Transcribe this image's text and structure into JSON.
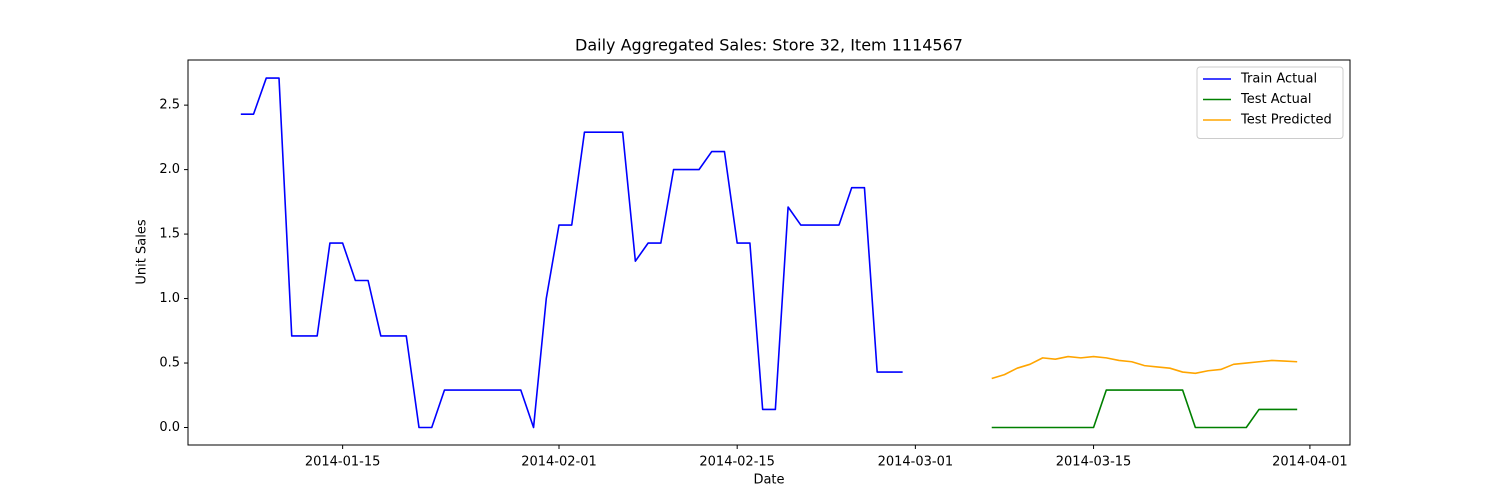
{
  "chart_data": {
    "type": "line",
    "title": "Daily Aggregated Sales: Store 32, Item 1114567",
    "x_label": "Date",
    "y_label": "Unit Sales",
    "xlim": [
      "2014-01-02T20:24:00Z",
      "2014-04-04T03:36:00Z"
    ],
    "xticks": [
      "2014-01-15",
      "2014-02-01",
      "2014-02-15",
      "2014-03-01",
      "2014-03-15",
      "2014-04-01"
    ],
    "ylim": [
      -0.1357,
      2.85
    ],
    "yticks": [
      {
        "value": 0,
        "label": "0.0"
      },
      {
        "value": 0.5,
        "label": "0.5"
      },
      {
        "value": 1,
        "label": "1.0"
      },
      {
        "value": 1.5,
        "label": "1.5"
      },
      {
        "value": 2,
        "label": "2.0"
      },
      {
        "value": 2.5,
        "label": "2.5"
      }
    ],
    "legend": "upper right",
    "grid": false,
    "series": [
      {
        "name": "Train Actual",
        "color": "#0000ff",
        "x": [
          "2014-01-07",
          "2014-01-08",
          "2014-01-09",
          "2014-01-10",
          "2014-01-11",
          "2014-01-12",
          "2014-01-13",
          "2014-01-14",
          "2014-01-15",
          "2014-01-16",
          "2014-01-17",
          "2014-01-18",
          "2014-01-19",
          "2014-01-20",
          "2014-01-21",
          "2014-01-22",
          "2014-01-23",
          "2014-01-24",
          "2014-01-25",
          "2014-01-26",
          "2014-01-27",
          "2014-01-28",
          "2014-01-29",
          "2014-01-30",
          "2014-01-31",
          "2014-02-01",
          "2014-02-02",
          "2014-02-03",
          "2014-02-04",
          "2014-02-05",
          "2014-02-06",
          "2014-02-07",
          "2014-02-08",
          "2014-02-09",
          "2014-02-10",
          "2014-02-11",
          "2014-02-12",
          "2014-02-13",
          "2014-02-14",
          "2014-02-15",
          "2014-02-16",
          "2014-02-17",
          "2014-02-18",
          "2014-02-19",
          "2014-02-20",
          "2014-02-21",
          "2014-02-22",
          "2014-02-23",
          "2014-02-24",
          "2014-02-25",
          "2014-02-26",
          "2014-02-27",
          "2014-02-28"
        ],
        "values": [
          2.43,
          2.43,
          2.71,
          2.71,
          0.71,
          0.71,
          0.71,
          1.43,
          1.43,
          1.14,
          1.14,
          0.71,
          0.71,
          0.71,
          0,
          0,
          0.29,
          0.29,
          0.29,
          0.29,
          0.29,
          0.29,
          0.29,
          0,
          1,
          1.57,
          1.57,
          2.29,
          2.29,
          2.29,
          2.29,
          1.29,
          1.43,
          1.43,
          2,
          2,
          2,
          2.14,
          2.14,
          1.43,
          1.43,
          0.14,
          0.14,
          1.71,
          1.57,
          1.57,
          1.57,
          1.57,
          1.86,
          1.86,
          0.43,
          0.43,
          0.43
        ]
      },
      {
        "name": "Test Actual",
        "color": "#008000",
        "x": [
          "2014-03-07",
          "2014-03-08",
          "2014-03-09",
          "2014-03-10",
          "2014-03-11",
          "2014-03-12",
          "2014-03-13",
          "2014-03-14",
          "2014-03-15",
          "2014-03-16",
          "2014-03-17",
          "2014-03-18",
          "2014-03-19",
          "2014-03-20",
          "2014-03-21",
          "2014-03-22",
          "2014-03-23",
          "2014-03-24",
          "2014-03-25",
          "2014-03-26",
          "2014-03-27",
          "2014-03-28",
          "2014-03-29",
          "2014-03-30",
          "2014-03-31"
        ],
        "values": [
          0,
          0,
          0,
          0,
          0,
          0,
          0,
          0,
          0,
          0.29,
          0.29,
          0.29,
          0.29,
          0.29,
          0.29,
          0.29,
          0,
          0,
          0,
          0,
          0,
          0.14,
          0.14,
          0.14,
          0.14
        ]
      },
      {
        "name": "Test Predicted",
        "color": "#ffa500",
        "x": [
          "2014-03-07",
          "2014-03-08",
          "2014-03-09",
          "2014-03-10",
          "2014-03-11",
          "2014-03-12",
          "2014-03-13",
          "2014-03-14",
          "2014-03-15",
          "2014-03-16",
          "2014-03-17",
          "2014-03-18",
          "2014-03-19",
          "2014-03-20",
          "2014-03-21",
          "2014-03-22",
          "2014-03-23",
          "2014-03-24",
          "2014-03-25",
          "2014-03-26",
          "2014-03-27",
          "2014-03-28",
          "2014-03-29",
          "2014-03-30",
          "2014-03-31"
        ],
        "values": [
          0.38,
          0.41,
          0.46,
          0.49,
          0.54,
          0.53,
          0.55,
          0.54,
          0.55,
          0.54,
          0.52,
          0.51,
          0.48,
          0.47,
          0.46,
          0.43,
          0.42,
          0.44,
          0.45,
          0.49,
          0.5,
          0.51,
          0.52,
          0.515,
          0.51
        ]
      }
    ]
  }
}
